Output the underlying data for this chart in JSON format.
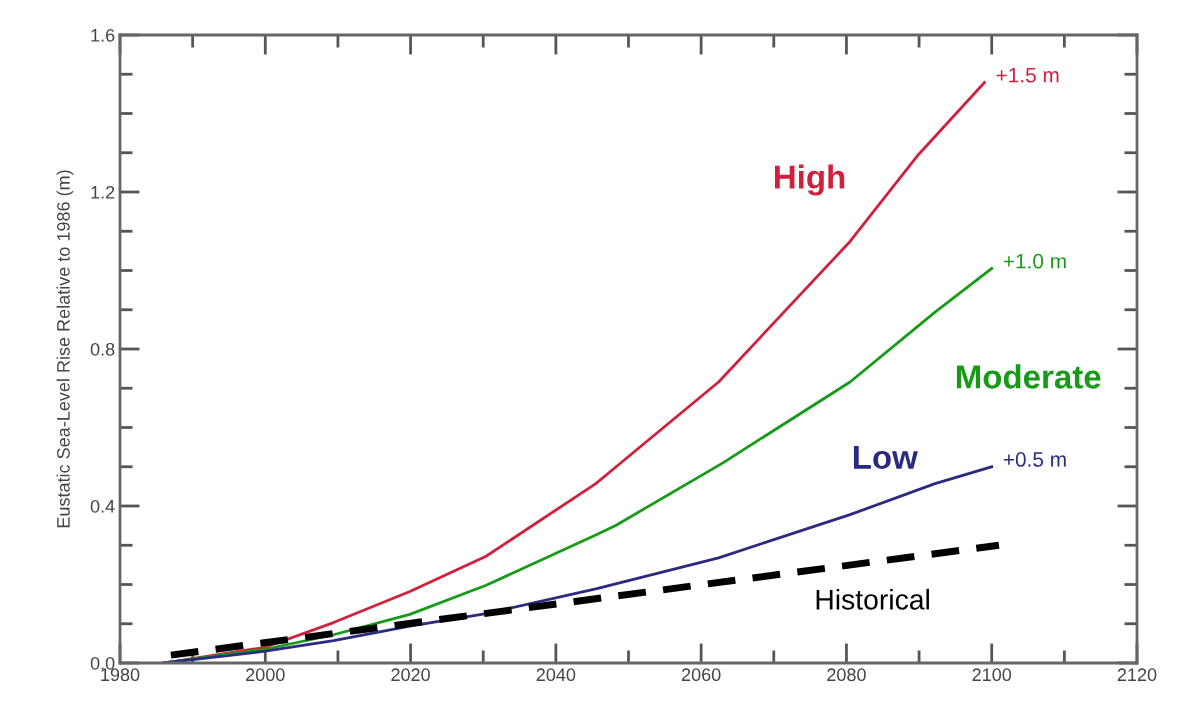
{
  "chart_data": {
    "type": "line",
    "ylabel": "Eustatic Sea-Level Rise Relative to 1986 (m)",
    "xlim": [
      1980,
      2120
    ],
    "xticks": [
      1980,
      2000,
      2020,
      2040,
      2060,
      2080,
      2100,
      2120
    ],
    "ylim": [
      0,
      1.6
    ],
    "yticks": [
      {
        "value": 0,
        "label": "0.0"
      },
      {
        "value": 0.4,
        "label": "0.4"
      },
      {
        "value": 0.8,
        "label": "0.8"
      },
      {
        "value": 1.2,
        "label": "1.2"
      },
      {
        "value": 1.6,
        "label": "1.6"
      }
    ],
    "grid": false,
    "legend": false,
    "marker": "none",
    "series": [
      {
        "name": "High",
        "color": "#d0203c",
        "x": [
          1986,
          2000,
          2009.4,
          2019.9,
          2030.4,
          2045.5,
          2048.3,
          2062.4,
          2080.5,
          2089.9,
          2099
        ],
        "values": [
          0,
          0.04,
          0.103,
          0.182,
          0.272,
          0.457,
          0.5,
          0.716,
          1.074,
          1.295,
          1.479
        ]
      },
      {
        "name": "Moderate",
        "color": "#179a17",
        "x": [
          1986,
          2000,
          2009.4,
          2019.9,
          2030.4,
          2045.5,
          2048.3,
          2063,
          2080.5,
          2092.2,
          2100
        ],
        "values": [
          0,
          0.035,
          0.072,
          0.124,
          0.198,
          0.326,
          0.351,
          0.51,
          0.716,
          0.894,
          1.005
        ]
      },
      {
        "name": "Low",
        "color": "#2a2a80",
        "x": [
          1986,
          2000,
          2009.4,
          2019.9,
          2030.4,
          2045.5,
          2062.4,
          2080.5,
          2092.2,
          2100
        ],
        "values": [
          0,
          0.03,
          0.057,
          0.094,
          0.126,
          0.189,
          0.268,
          0.378,
          0.457,
          0.5
        ]
      },
      {
        "name": "Historical",
        "color": "#000000",
        "line_style": "dashed",
        "x": [
          1987,
          2101
        ],
        "values": [
          0.02,
          0.3
        ]
      }
    ],
    "annotations": [
      "+1.5 m",
      "+1.0 m",
      "+0.5 m"
    ]
  }
}
